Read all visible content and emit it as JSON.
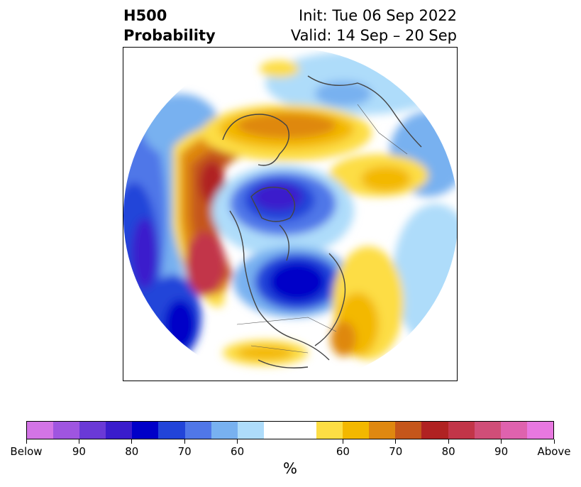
{
  "title": {
    "left_line1": "H500",
    "left_line2": "Probability",
    "right_line1": "Init: Tue 06 Sep 2022",
    "right_line2": "Valid: 14 Sep – 20 Sep"
  },
  "colorbar": {
    "colors": [
      "#d374e6",
      "#9f55e0",
      "#6a39d6",
      "#3a1ccc",
      "#0000c8",
      "#2244d9",
      "#5077e8",
      "#78b1f0",
      "#aedcfa",
      "#ffffff",
      "#ffffff",
      "#fddd44",
      "#f3b800",
      "#df8810",
      "#c5561b",
      "#b02222",
      "#c23548",
      "#d04e78",
      "#df62ae",
      "#e878e0"
    ],
    "tick_labels": [
      "Below",
      "90",
      "80",
      "70",
      "60",
      "60",
      "70",
      "80",
      "90",
      "Above"
    ],
    "unit_label": "%"
  }
}
